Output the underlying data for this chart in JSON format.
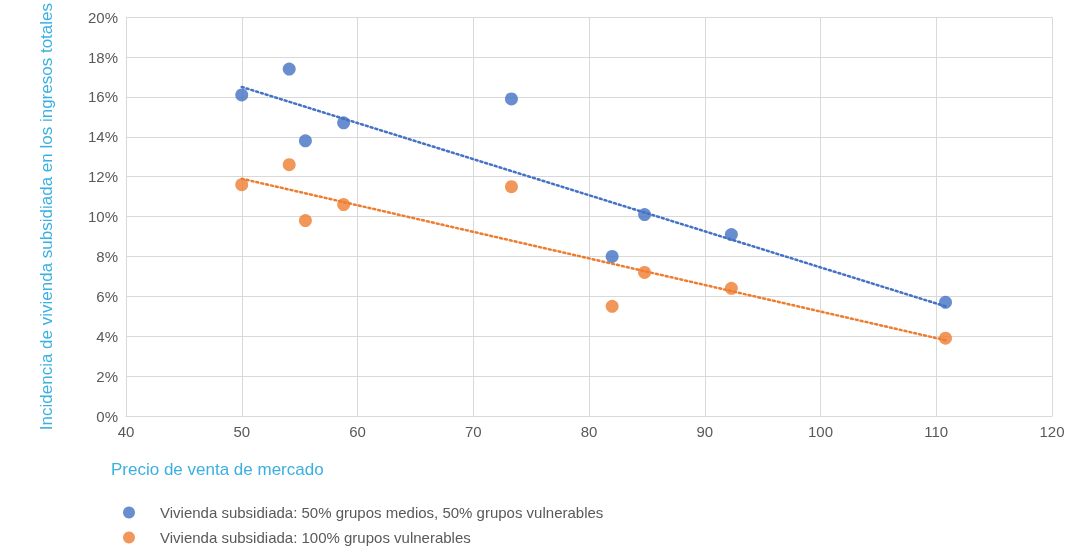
{
  "chart_data": {
    "type": "scatter",
    "xlabel": "Precio de venta de mercado",
    "ylabel": "Incidencia de vivienda subsidiada en los ingresos totales",
    "xlim": [
      40,
      120
    ],
    "xticks": [
      40,
      50,
      60,
      70,
      80,
      90,
      100,
      110,
      120
    ],
    "ylim": [
      0,
      20
    ],
    "yticks": [
      {
        "value": 0,
        "label": "0%"
      },
      {
        "value": 2,
        "label": "2%"
      },
      {
        "value": 4,
        "label": "4%"
      },
      {
        "value": 6,
        "label": "6%"
      },
      {
        "value": 8,
        "label": "8%"
      },
      {
        "value": 10,
        "label": "10%"
      },
      {
        "value": 12,
        "label": "12%"
      },
      {
        "value": 14,
        "label": "14%"
      },
      {
        "value": 16,
        "label": "16%"
      },
      {
        "value": 18,
        "label": "18%"
      },
      {
        "value": 20,
        "label": "20%"
      }
    ],
    "grid": true,
    "legend": "bottom",
    "marker": "circle",
    "series": [
      {
        "name": "Vivienda subsidiada: 50% grupos medios, 50% grupos vulnerables",
        "color": "#4472c4",
        "x": [
          50,
          54.1,
          55.5,
          58.8,
          73.3,
          82,
          84.8,
          92.3,
          110.8
        ],
        "values": [
          16.1,
          17.4,
          13.8,
          14.7,
          15.9,
          8.0,
          10.1,
          9.1,
          5.7
        ]
      },
      {
        "name": "Vivienda subsidiada: 100% grupos vulnerables",
        "color": "#ed7d31",
        "x": [
          50,
          54.1,
          55.5,
          58.8,
          73.3,
          82,
          84.8,
          92.3,
          110.8
        ],
        "values": [
          11.6,
          12.6,
          9.8,
          10.6,
          11.5,
          5.5,
          7.2,
          6.4,
          3.9
        ]
      },
      {
        "type": "line",
        "color": "#4472c4",
        "line_style": "dotted",
        "marker": "none",
        "x": [
          50,
          110.8
        ],
        "values": [
          16.5,
          5.5
        ]
      },
      {
        "type": "line",
        "color": "#ed7d31",
        "line_style": "dotted",
        "marker": "none",
        "x": [
          50,
          110.8
        ],
        "values": [
          11.9,
          3.8
        ]
      }
    ]
  }
}
